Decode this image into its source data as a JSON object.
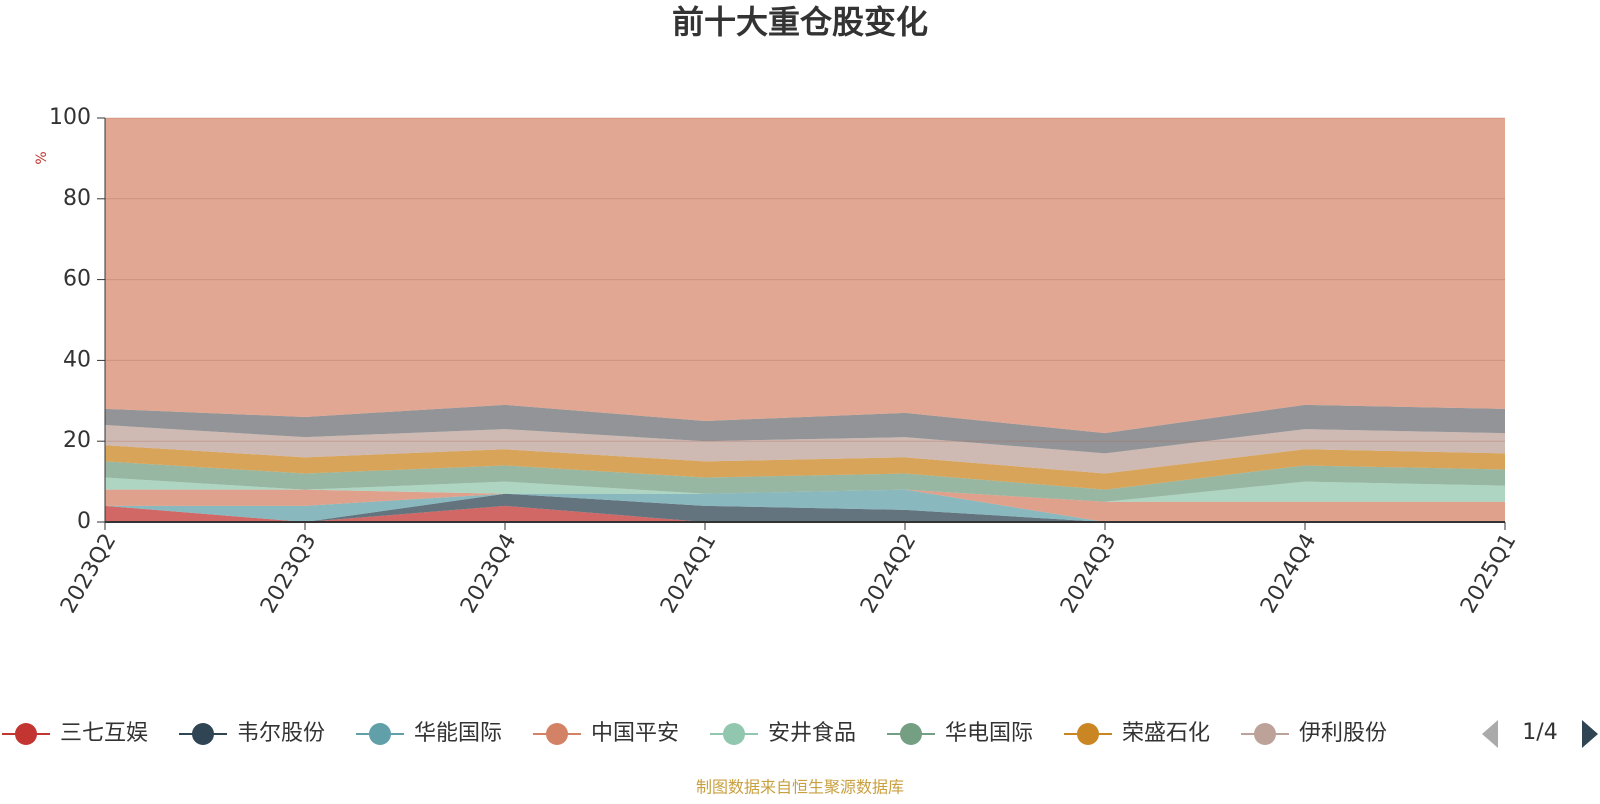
{
  "chart_data": {
    "type": "stacked_area",
    "title": "前十大重仓股变化",
    "y_label": "%",
    "categories": [
      "2023Q2",
      "2023Q3",
      "2023Q4",
      "2024Q1",
      "2024Q2",
      "2024Q3",
      "2024Q4",
      "2025Q1"
    ],
    "ylim": [
      0,
      100
    ],
    "yticks": [
      0,
      20,
      40,
      60,
      80,
      100
    ],
    "grid": true,
    "series": [
      {
        "name": "三七互娱",
        "color": "#c23531",
        "values": [
          4,
          0,
          4,
          0,
          0,
          0,
          0,
          0
        ]
      },
      {
        "name": "韦尔股份",
        "color": "#2f4554",
        "values": [
          0,
          0,
          3,
          4,
          3,
          0,
          0,
          0
        ]
      },
      {
        "name": "华能国际",
        "color": "#61a0a8",
        "values": [
          0,
          4,
          0,
          3,
          5,
          0,
          0,
          0
        ]
      },
      {
        "name": "中国平安",
        "color": "#d48265",
        "values": [
          4,
          4,
          0,
          0,
          0,
          5,
          5,
          5
        ]
      },
      {
        "name": "安井食品",
        "color": "#91c7ae",
        "values": [
          3,
          0,
          3,
          0,
          0,
          0,
          5,
          4
        ]
      },
      {
        "name": "华电国际",
        "color": "#749f83",
        "values": [
          4,
          4,
          4,
          4,
          4,
          3,
          4,
          4
        ]
      },
      {
        "name": "荣盛石化",
        "color": "#ca8622",
        "values": [
          4,
          4,
          4,
          4,
          4,
          4,
          4,
          4
        ]
      },
      {
        "name": "伊利股份",
        "color": "#bda29a",
        "values": [
          5,
          5,
          5,
          5,
          5,
          5,
          5,
          5
        ]
      },
      {
        "color": "#6e7074",
        "values": [
          4,
          5,
          6,
          5,
          6,
          5,
          6,
          6
        ]
      },
      {
        "color": "#d48265",
        "values": [
          72,
          74,
          71,
          75,
          73,
          78,
          71,
          72
        ]
      }
    ],
    "legend_page": "1/4",
    "source": "制图数据来自恒生聚源数据库"
  }
}
